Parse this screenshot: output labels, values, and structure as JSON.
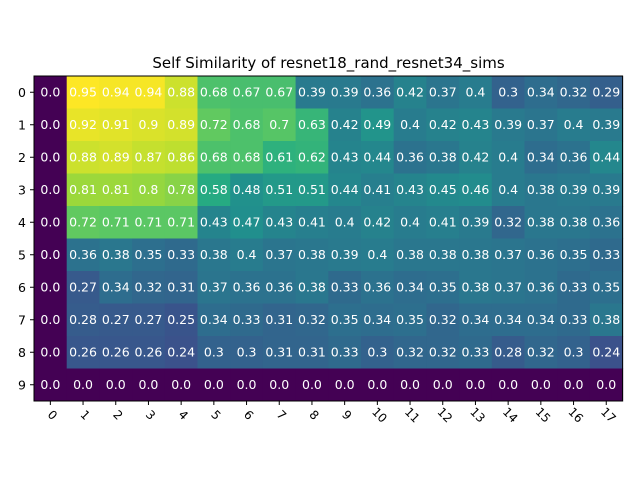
{
  "chart_data": {
    "type": "heatmap",
    "title": "Self Similarity of resnet18_rand_resnet34_sims",
    "xlabel": "",
    "ylabel": "",
    "x_ticks": [
      "0",
      "1",
      "2",
      "3",
      "4",
      "5",
      "6",
      "7",
      "8",
      "9",
      "10",
      "11",
      "12",
      "13",
      "14",
      "15",
      "16",
      "17"
    ],
    "y_ticks": [
      "0",
      "1",
      "2",
      "3",
      "4",
      "5",
      "6",
      "7",
      "8",
      "9"
    ],
    "colormap": "viridis",
    "value_range": [
      0,
      0.95
    ],
    "values": [
      [
        0.0,
        0.95,
        0.94,
        0.94,
        0.88,
        0.68,
        0.67,
        0.67,
        0.39,
        0.39,
        0.36,
        0.42,
        0.37,
        0.4,
        0.3,
        0.34,
        0.32,
        0.29
      ],
      [
        0.0,
        0.92,
        0.91,
        0.9,
        0.89,
        0.72,
        0.68,
        0.7,
        0.63,
        0.42,
        0.49,
        0.4,
        0.42,
        0.43,
        0.39,
        0.37,
        0.4,
        0.39
      ],
      [
        0.0,
        0.88,
        0.89,
        0.87,
        0.86,
        0.68,
        0.68,
        0.61,
        0.62,
        0.43,
        0.44,
        0.36,
        0.38,
        0.42,
        0.4,
        0.34,
        0.36,
        0.44
      ],
      [
        0.0,
        0.81,
        0.81,
        0.8,
        0.78,
        0.58,
        0.48,
        0.51,
        0.51,
        0.44,
        0.41,
        0.43,
        0.45,
        0.46,
        0.4,
        0.38,
        0.39,
        0.39
      ],
      [
        0.0,
        0.72,
        0.71,
        0.71,
        0.71,
        0.43,
        0.47,
        0.43,
        0.41,
        0.4,
        0.42,
        0.4,
        0.41,
        0.39,
        0.32,
        0.38,
        0.38,
        0.36
      ],
      [
        0.0,
        0.36,
        0.38,
        0.35,
        0.33,
        0.38,
        0.4,
        0.37,
        0.38,
        0.39,
        0.4,
        0.38,
        0.38,
        0.38,
        0.37,
        0.36,
        0.35,
        0.33
      ],
      [
        0.0,
        0.27,
        0.34,
        0.32,
        0.31,
        0.37,
        0.36,
        0.36,
        0.38,
        0.33,
        0.36,
        0.34,
        0.35,
        0.38,
        0.37,
        0.36,
        0.33,
        0.35
      ],
      [
        0.0,
        0.28,
        0.27,
        0.27,
        0.25,
        0.34,
        0.33,
        0.31,
        0.32,
        0.35,
        0.34,
        0.35,
        0.32,
        0.34,
        0.34,
        0.34,
        0.33,
        0.38
      ],
      [
        0.0,
        0.26,
        0.26,
        0.26,
        0.24,
        0.3,
        0.3,
        0.31,
        0.31,
        0.33,
        0.3,
        0.32,
        0.32,
        0.33,
        0.28,
        0.32,
        0.3,
        0.24
      ],
      [
        0.0,
        0.0,
        0.0,
        0.0,
        0.0,
        0.0,
        0.0,
        0.0,
        0.0,
        0.0,
        0.0,
        0.0,
        0.0,
        0.0,
        0.0,
        0.0,
        0.0,
        0.0
      ]
    ]
  }
}
